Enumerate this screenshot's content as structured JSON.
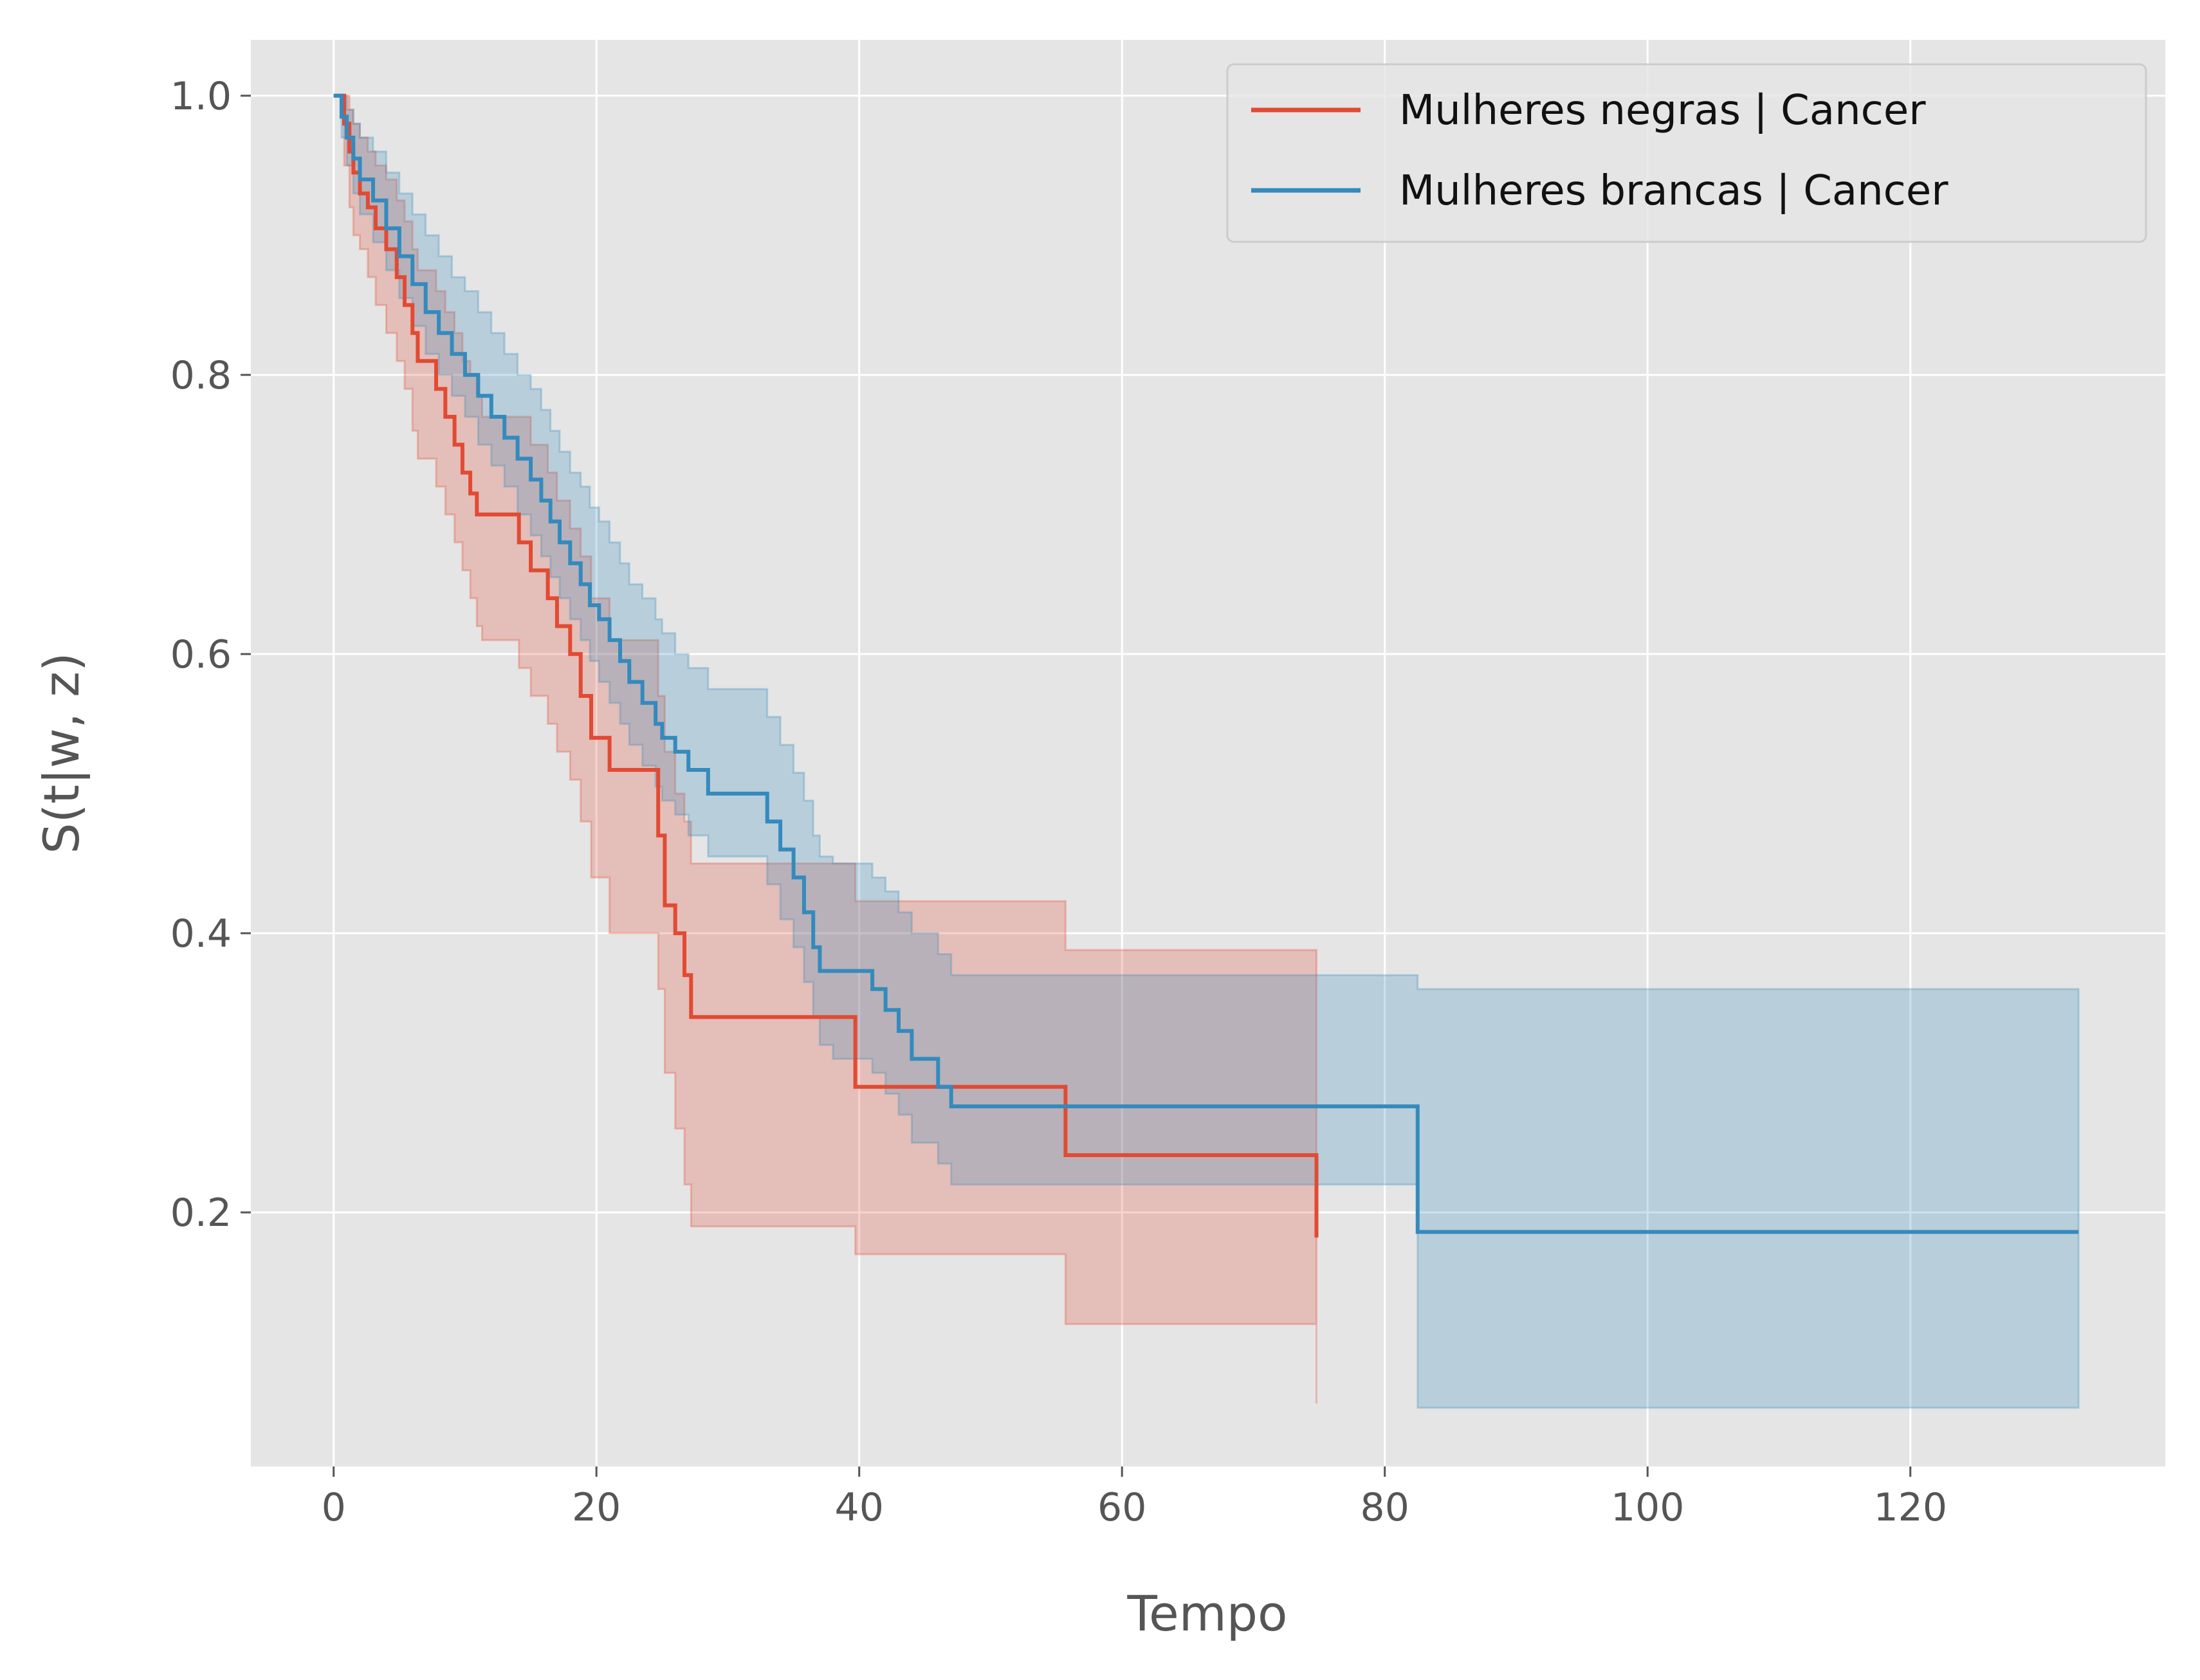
{
  "chart_data": {
    "type": "line",
    "style": "ggplot step plot with confidence bands",
    "title": "",
    "xlabel": "Tempo",
    "ylabel": "S(t|w, z)",
    "xlim": [
      -6.3,
      139.4
    ],
    "ylim": [
      0.018,
      1.04
    ],
    "xticks": [
      0,
      20,
      40,
      60,
      80,
      100,
      120
    ],
    "xtick_labels": [
      "0",
      "20",
      "40",
      "60",
      "80",
      "100",
      "120"
    ],
    "yticks": [
      0.2,
      0.4,
      0.6,
      0.8,
      1.0
    ],
    "ytick_labels": [
      "0.2",
      "0.4",
      "0.6",
      "0.8",
      "1.0"
    ],
    "grid": true,
    "background": "#e5e5e5",
    "legend_position": "top-right",
    "series": [
      {
        "name": "Mulheres negras | Cancer",
        "color": "#e24a33",
        "step": "post",
        "x": [
          0,
          0.8,
          1.2,
          1.5,
          2.0,
          2.6,
          3.2,
          4.0,
          4.8,
          5.4,
          6.0,
          6.4,
          7.8,
          8.5,
          9.2,
          9.8,
          10.4,
          10.9,
          11.3,
          14.1,
          15.0,
          16.3,
          17.0,
          18.0,
          18.8,
          19.6,
          21.0,
          24.7,
          25.2,
          26.0,
          26.7,
          27.2,
          39.7,
          55.7,
          74.8
        ],
        "y": [
          1.0,
          0.98,
          0.96,
          0.945,
          0.93,
          0.92,
          0.905,
          0.89,
          0.87,
          0.85,
          0.83,
          0.81,
          0.79,
          0.77,
          0.75,
          0.73,
          0.715,
          0.7,
          0.7,
          0.68,
          0.66,
          0.64,
          0.62,
          0.6,
          0.57,
          0.54,
          0.517,
          0.47,
          0.42,
          0.4,
          0.37,
          0.34,
          0.29,
          0.241,
          0.182
        ],
        "ci_upper": [
          1.0,
          1.0,
          0.99,
          0.98,
          0.97,
          0.96,
          0.95,
          0.94,
          0.925,
          0.91,
          0.89,
          0.875,
          0.86,
          0.845,
          0.83,
          0.81,
          0.8,
          0.785,
          0.77,
          0.77,
          0.75,
          0.73,
          0.71,
          0.69,
          0.67,
          0.64,
          0.61,
          0.57,
          0.53,
          0.5,
          0.48,
          0.45,
          0.423,
          0.388,
          0.346
        ],
        "ci_lower": [
          1.0,
          0.95,
          0.92,
          0.9,
          0.89,
          0.87,
          0.85,
          0.83,
          0.81,
          0.79,
          0.76,
          0.74,
          0.72,
          0.7,
          0.68,
          0.66,
          0.64,
          0.62,
          0.61,
          0.59,
          0.57,
          0.55,
          0.53,
          0.51,
          0.48,
          0.44,
          0.4,
          0.36,
          0.3,
          0.26,
          0.22,
          0.19,
          0.17,
          0.12,
          0.063
        ]
      },
      {
        "name": "Mulheres brancas | Cancer",
        "color": "#348abd",
        "step": "post",
        "x": [
          0,
          0.6,
          1.0,
          1.5,
          2.0,
          3.0,
          4.0,
          5.0,
          6.0,
          7.0,
          8.0,
          9.0,
          10.0,
          11.0,
          12.0,
          13.0,
          14.0,
          15.0,
          15.8,
          16.5,
          17.2,
          18.0,
          18.8,
          19.5,
          20.2,
          21.0,
          21.8,
          22.5,
          23.5,
          24.5,
          25.0,
          26.0,
          27.0,
          28.5,
          33.0,
          34.0,
          35.0,
          35.8,
          36.5,
          37.0,
          38.0,
          41.0,
          42.0,
          43.0,
          44.0,
          46.0,
          47.0,
          82.5,
          132.8
        ],
        "y": [
          1.0,
          0.985,
          0.97,
          0.955,
          0.94,
          0.925,
          0.905,
          0.885,
          0.865,
          0.845,
          0.83,
          0.815,
          0.8,
          0.785,
          0.77,
          0.755,
          0.74,
          0.725,
          0.71,
          0.695,
          0.68,
          0.665,
          0.65,
          0.635,
          0.625,
          0.61,
          0.595,
          0.58,
          0.565,
          0.55,
          0.54,
          0.53,
          0.517,
          0.5,
          0.48,
          0.46,
          0.44,
          0.415,
          0.39,
          0.373,
          0.373,
          0.36,
          0.345,
          0.33,
          0.31,
          0.29,
          0.276,
          0.186,
          0.186
        ],
        "ci_upper": [
          1.0,
          1.0,
          0.99,
          0.98,
          0.97,
          0.96,
          0.945,
          0.93,
          0.915,
          0.9,
          0.885,
          0.87,
          0.86,
          0.845,
          0.83,
          0.815,
          0.8,
          0.79,
          0.775,
          0.76,
          0.745,
          0.73,
          0.72,
          0.705,
          0.695,
          0.68,
          0.665,
          0.65,
          0.64,
          0.625,
          0.615,
          0.6,
          0.59,
          0.575,
          0.555,
          0.535,
          0.515,
          0.495,
          0.47,
          0.455,
          0.45,
          0.44,
          0.43,
          0.415,
          0.4,
          0.385,
          0.37,
          0.36,
          0.36
        ],
        "ci_lower": [
          1.0,
          0.97,
          0.95,
          0.93,
          0.915,
          0.895,
          0.875,
          0.855,
          0.835,
          0.815,
          0.8,
          0.785,
          0.77,
          0.75,
          0.735,
          0.72,
          0.7,
          0.685,
          0.67,
          0.655,
          0.64,
          0.625,
          0.61,
          0.595,
          0.58,
          0.565,
          0.55,
          0.535,
          0.52,
          0.505,
          0.495,
          0.485,
          0.47,
          0.455,
          0.435,
          0.41,
          0.39,
          0.365,
          0.34,
          0.32,
          0.31,
          0.3,
          0.285,
          0.27,
          0.25,
          0.235,
          0.22,
          0.06,
          0.06
        ]
      }
    ]
  }
}
